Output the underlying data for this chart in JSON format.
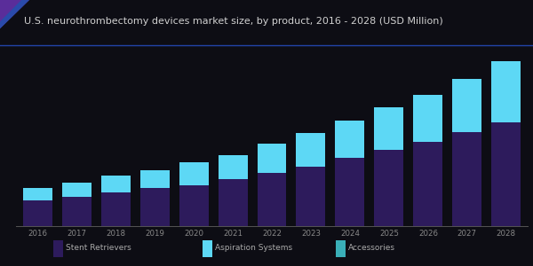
{
  "title": "U.S. neurothrombectomy devices market size, by product, 2016 - 2028 (USD Million)",
  "years": [
    "2016",
    "2017",
    "2018",
    "2019",
    "2020",
    "2021",
    "2022",
    "2023",
    "2024",
    "2025",
    "2026",
    "2027",
    "2028"
  ],
  "bottom_values": [
    100,
    115,
    132,
    148,
    160,
    185,
    210,
    235,
    268,
    300,
    332,
    368,
    408
  ],
  "top_values": [
    48,
    55,
    65,
    72,
    90,
    95,
    115,
    130,
    148,
    165,
    185,
    210,
    240
  ],
  "bottom_color": "#2d1b5c",
  "top_color": "#5dd8f5",
  "background_color": "#0d0d14",
  "plot_bg_color": "#0d0d14",
  "title_color": "#d0d0d0",
  "title_fontsize": 8.0,
  "bar_width": 0.75,
  "legend_labels": [
    "Stent Retrievers",
    "Aspiration Systems",
    "Accessories"
  ],
  "legend_colors": [
    "#2d1b5c",
    "#5dd8f5",
    "#3aafb8"
  ],
  "accent_color1": "#5a2d9a",
  "accent_color2": "#2a4aaa",
  "tick_color": "#888888",
  "spine_color": "#555555"
}
